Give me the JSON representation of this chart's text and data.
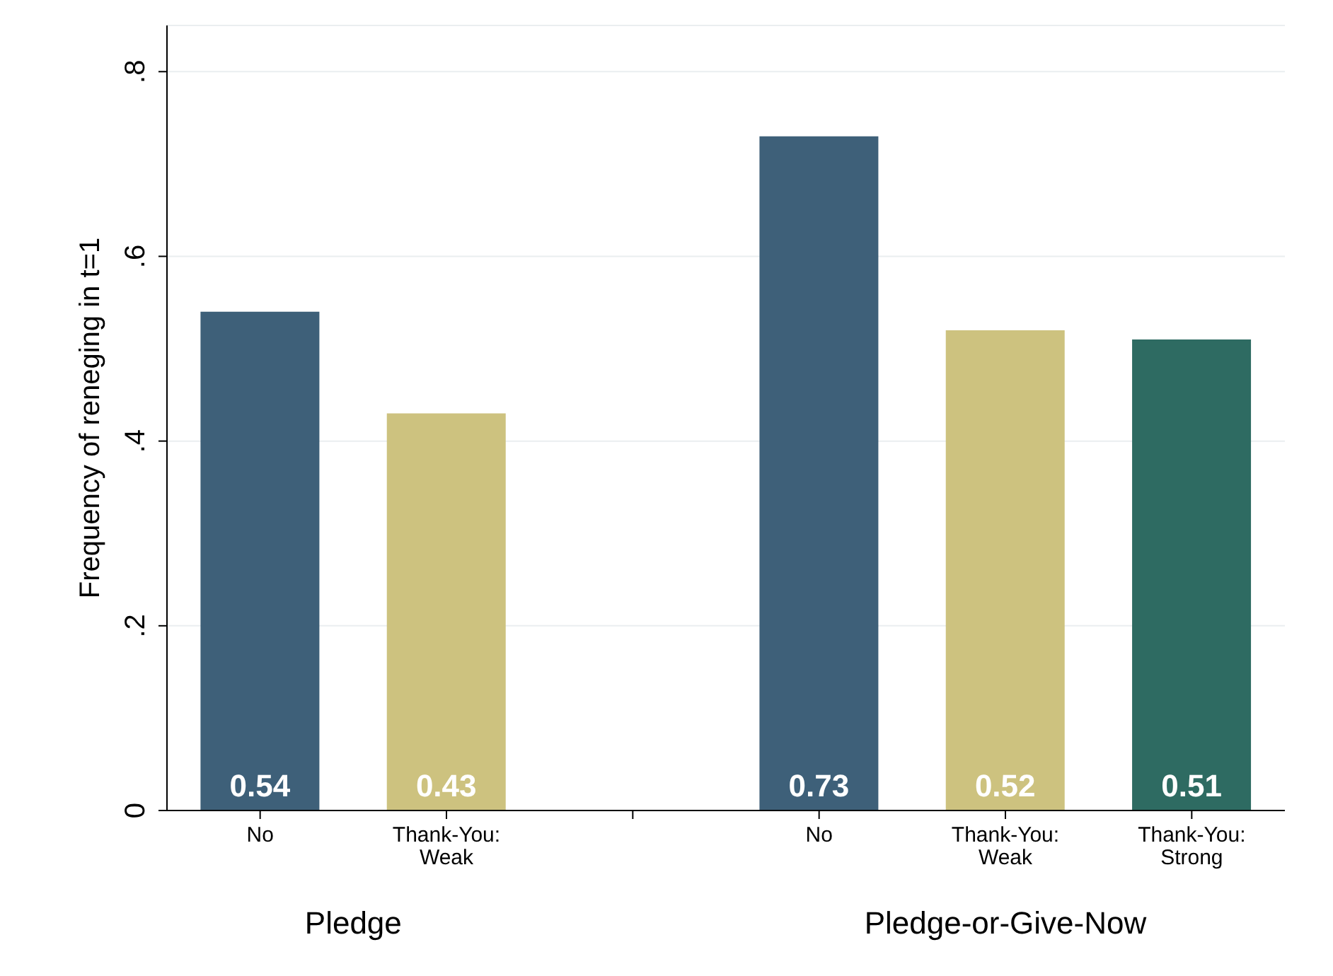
{
  "chart_data": {
    "type": "bar",
    "ylabel": "Frequency of reneging in t=1",
    "categories": [
      "No",
      "Thank-You:\nWeak",
      null,
      "No",
      "Thank-You:\nWeak",
      "Thank-You:\nStrong"
    ],
    "values": [
      0.54,
      0.43,
      null,
      0.73,
      0.52,
      0.51
    ],
    "colors": [
      "#3e6079",
      "#cdc27f",
      null,
      "#3e6079",
      "#cdc27f",
      "#2e6b62"
    ],
    "ylim": [
      0,
      0.85
    ],
    "yticks": [
      0,
      {
        "value": 0.2,
        "label": ".2"
      },
      {
        "value": 0.4,
        "label": ".4"
      },
      {
        "value": 0.6,
        "label": ".6"
      },
      {
        "value": 0.8,
        "label": ".8"
      }
    ],
    "grid": "y",
    "data_labels": true,
    "annotations": [
      "Pledge",
      "Pledge-or-Give-Now"
    ]
  }
}
